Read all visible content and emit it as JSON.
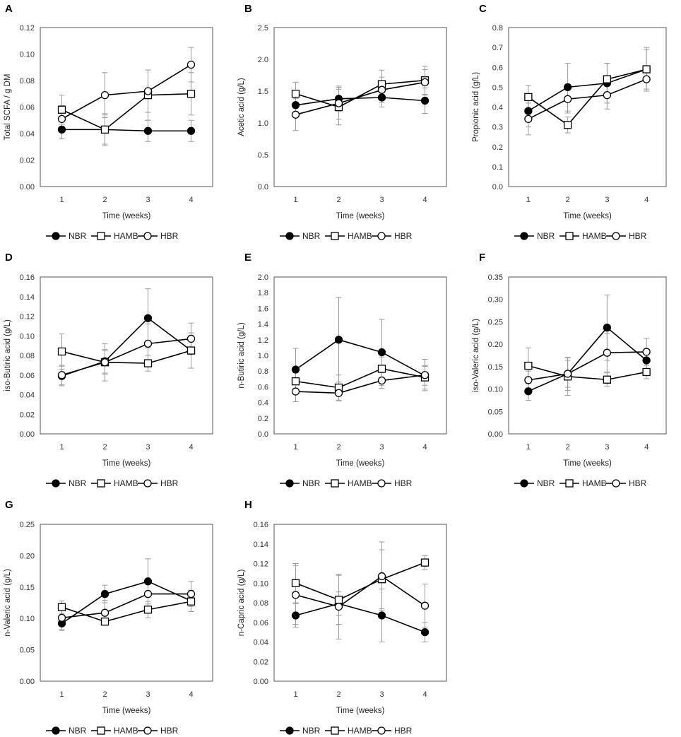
{
  "colors": {
    "line": "#000000",
    "errorbar": "#9a9a9a",
    "plot_border": "#555555",
    "filled": "#000000",
    "open": "#ffffff"
  },
  "chart_data": [
    {
      "panel": "A",
      "type": "line",
      "ylabel": "Total SCFA / g DM",
      "xlabel": "Time (weeks)",
      "categories": [
        "1",
        "2",
        "3",
        "4"
      ],
      "ylim": [
        0,
        0.12
      ],
      "ystep": 0.02,
      "decimals": 2,
      "legend": [
        "NBR",
        "HAMB",
        "HBR"
      ],
      "series": [
        {
          "name": "NBR",
          "marker": "filled-circle",
          "values": [
            0.043,
            0.043,
            0.042,
            0.042
          ],
          "errors": [
            0.007,
            0.011,
            0.008,
            0.008
          ]
        },
        {
          "name": "HAMB",
          "marker": "open-square",
          "values": [
            0.058,
            0.043,
            0.069,
            0.07
          ],
          "errors": [
            0.011,
            0.012,
            0.019,
            0.016
          ]
        },
        {
          "name": "HBR",
          "marker": "open-circle",
          "values": [
            0.051,
            0.069,
            0.072,
            0.092
          ],
          "errors": [
            0.01,
            0.017,
            0.016,
            0.013
          ]
        }
      ]
    },
    {
      "panel": "B",
      "type": "line",
      "ylabel": "Acetic acid (g/L)",
      "xlabel": "Time (weeks)",
      "categories": [
        "1",
        "2",
        "3",
        "4"
      ],
      "ylim": [
        0,
        2.5
      ],
      "ystep": 0.5,
      "decimals": 1,
      "legend": [
        "NBR",
        "HAMB",
        "HBR"
      ],
      "series": [
        {
          "name": "NBR",
          "marker": "filled-circle",
          "values": [
            1.28,
            1.38,
            1.4,
            1.35
          ],
          "errors": [
            0.15,
            0.2,
            0.15,
            0.2
          ]
        },
        {
          "name": "HAMB",
          "marker": "open-square",
          "values": [
            1.46,
            1.25,
            1.61,
            1.67
          ],
          "errors": [
            0.18,
            0.28,
            0.22,
            0.22
          ]
        },
        {
          "name": "HBR",
          "marker": "open-circle",
          "values": [
            1.13,
            1.31,
            1.52,
            1.64
          ],
          "errors": [
            0.25,
            0.25,
            0.2,
            0.2
          ]
        }
      ]
    },
    {
      "panel": "C",
      "type": "line",
      "ylabel": "Propionic acid (g/L)",
      "xlabel": "Time (weeks)",
      "categories": [
        "1",
        "2",
        "3",
        "4"
      ],
      "ylim": [
        0,
        0.8
      ],
      "ystep": 0.1,
      "decimals": 1,
      "legend": [
        "NBR",
        "HAMB",
        "HBR"
      ],
      "series": [
        {
          "name": "NBR",
          "marker": "filled-circle",
          "values": [
            0.38,
            0.5,
            0.52,
            0.59
          ],
          "errors": [
            0.08,
            0.12,
            0.1,
            0.1
          ]
        },
        {
          "name": "HAMB",
          "marker": "open-square",
          "values": [
            0.45,
            0.31,
            0.54,
            0.59
          ],
          "errors": [
            0.06,
            0.04,
            0.08,
            0.11
          ]
        },
        {
          "name": "HBR",
          "marker": "open-circle",
          "values": [
            0.34,
            0.44,
            0.46,
            0.54
          ],
          "errors": [
            0.08,
            0.07,
            0.07,
            0.06
          ]
        }
      ]
    },
    {
      "panel": "D",
      "type": "line",
      "ylabel": "iso-Butiric acid (g/L)",
      "xlabel": "Time (weeks)",
      "categories": [
        "1",
        "2",
        "3",
        "4"
      ],
      "ylim": [
        0,
        0.16
      ],
      "ystep": 0.02,
      "decimals": 2,
      "legend": [
        "NBR",
        "HAMB",
        "HBR"
      ],
      "series": [
        {
          "name": "NBR",
          "marker": "filled-circle",
          "values": [
            0.059,
            0.074,
            0.118,
            0.085
          ],
          "errors": [
            0.01,
            0.012,
            0.03,
            0.018
          ]
        },
        {
          "name": "HAMB",
          "marker": "open-square",
          "values": [
            0.084,
            0.073,
            0.072,
            0.085
          ],
          "errors": [
            0.018,
            0.019,
            0.008,
            0.018
          ]
        },
        {
          "name": "HBR",
          "marker": "open-circle",
          "values": [
            0.06,
            0.073,
            0.092,
            0.097
          ],
          "errors": [
            0.01,
            0.012,
            0.02,
            0.016
          ]
        }
      ]
    },
    {
      "panel": "E",
      "type": "line",
      "ylabel": "n-Butiric acid (g/L)",
      "xlabel": "Time (weeks)",
      "categories": [
        "1",
        "2",
        "3",
        "4"
      ],
      "ylim": [
        0,
        2.0
      ],
      "ystep": 0.2,
      "decimals": 1,
      "legend": [
        "NBR",
        "HAMB",
        "HBR"
      ],
      "series": [
        {
          "name": "NBR",
          "marker": "filled-circle",
          "values": [
            0.82,
            1.2,
            1.04,
            0.74
          ],
          "errors": [
            0.27,
            0.54,
            0.42,
            0.12
          ]
        },
        {
          "name": "HAMB",
          "marker": "open-square",
          "values": [
            0.67,
            0.59,
            0.83,
            0.72
          ],
          "errors": [
            0.12,
            0.16,
            0.15,
            0.15
          ]
        },
        {
          "name": "HBR",
          "marker": "open-circle",
          "values": [
            0.54,
            0.52,
            0.68,
            0.75
          ],
          "errors": [
            0.13,
            0.1,
            0.1,
            0.2
          ]
        }
      ]
    },
    {
      "panel": "F",
      "type": "line",
      "ylabel": "iso-Valeric acid (g/L)",
      "xlabel": "Time (weeks)",
      "categories": [
        "1",
        "2",
        "3",
        "4"
      ],
      "ylim": [
        0,
        0.35
      ],
      "ystep": 0.05,
      "decimals": 2,
      "legend": [
        "NBR",
        "HAMB",
        "HBR"
      ],
      "series": [
        {
          "name": "NBR",
          "marker": "filled-circle",
          "values": [
            0.095,
            0.134,
            0.237,
            0.164
          ],
          "errors": [
            0.02,
            0.03,
            0.073,
            0.02
          ]
        },
        {
          "name": "HAMB",
          "marker": "open-square",
          "values": [
            0.152,
            0.128,
            0.121,
            0.138
          ],
          "errors": [
            0.04,
            0.042,
            0.015,
            0.015
          ]
        },
        {
          "name": "HBR",
          "marker": "open-circle",
          "values": [
            0.12,
            0.134,
            0.181,
            0.183
          ],
          "errors": [
            0.02,
            0.037,
            0.043,
            0.03
          ]
        }
      ]
    },
    {
      "panel": "G",
      "type": "line",
      "ylabel": "n-Valeric acid (g/L)",
      "xlabel": "Time (weeks)",
      "categories": [
        "1",
        "2",
        "3",
        "4"
      ],
      "ylim": [
        0,
        0.25
      ],
      "ystep": 0.05,
      "decimals": 2,
      "legend": [
        "NBR",
        "HAMB",
        "HBR"
      ],
      "series": [
        {
          "name": "NBR",
          "marker": "filled-circle",
          "values": [
            0.092,
            0.139,
            0.159,
            0.128
          ],
          "errors": [
            0.01,
            0.014,
            0.036,
            0.017
          ]
        },
        {
          "name": "HAMB",
          "marker": "open-square",
          "values": [
            0.118,
            0.095,
            0.114,
            0.127
          ],
          "errors": [
            0.01,
            0.005,
            0.013,
            0.016
          ]
        },
        {
          "name": "HBR",
          "marker": "open-circle",
          "values": [
            0.101,
            0.109,
            0.139,
            0.139
          ],
          "errors": [
            0.02,
            0.02,
            0.022,
            0.02
          ]
        }
      ]
    },
    {
      "panel": "H",
      "type": "line",
      "ylabel": "n-Capric acid (g/L)",
      "xlabel": "Time (weeks)",
      "categories": [
        "1",
        "2",
        "3",
        "4"
      ],
      "ylim": [
        0,
        0.16
      ],
      "ystep": 0.02,
      "decimals": 2,
      "legend": [
        "NBR",
        "HAMB",
        "HBR"
      ],
      "series": [
        {
          "name": "NBR",
          "marker": "filled-circle",
          "values": [
            0.067,
            0.079,
            0.067,
            0.05
          ],
          "errors": [
            0.012,
            0.012,
            0.027,
            0.01
          ]
        },
        {
          "name": "HAMB",
          "marker": "open-square",
          "values": [
            0.1,
            0.083,
            0.104,
            0.121
          ],
          "errors": [
            0.02,
            0.025,
            0.03,
            0.007
          ]
        },
        {
          "name": "HBR",
          "marker": "open-circle",
          "values": [
            0.088,
            0.076,
            0.107,
            0.077
          ],
          "errors": [
            0.03,
            0.033,
            0.035,
            0.022
          ]
        }
      ]
    }
  ]
}
